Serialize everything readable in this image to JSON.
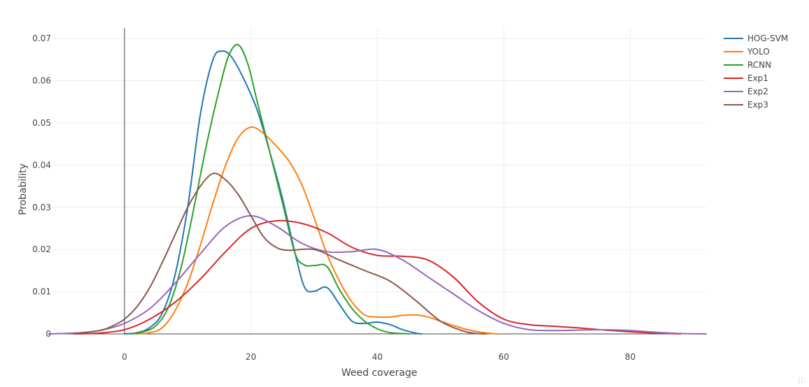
{
  "chart_data": {
    "type": "line",
    "title": "",
    "xlabel": "Weed coverage",
    "ylabel": "Probability",
    "xlim": [
      -11.5,
      92
    ],
    "ylim": [
      0,
      0.0725
    ],
    "xticks": [
      0,
      20,
      40,
      60,
      80
    ],
    "yticks": [
      0,
      0.01,
      0.02,
      0.03,
      0.04,
      0.05,
      0.06,
      0.07
    ],
    "ytick_labels": [
      "0",
      "0.01",
      "0.02",
      "0.03",
      "0.04",
      "0.05",
      "0.06",
      "0.07"
    ],
    "grid": true,
    "legend_position": "top-right",
    "series": [
      {
        "name": "HOG-SVM",
        "color": "#1f77b4",
        "x": [
          0,
          2,
          4,
          6,
          8,
          10,
          12,
          14,
          15.5,
          17,
          19,
          21,
          23,
          25,
          27,
          28.5,
          30,
          32,
          34,
          36,
          38,
          40,
          42,
          44,
          46,
          47
        ],
        "y": [
          0,
          0.0003,
          0.0015,
          0.005,
          0.014,
          0.03,
          0.052,
          0.065,
          0.067,
          0.0655,
          0.06,
          0.053,
          0.043,
          0.032,
          0.019,
          0.011,
          0.0101,
          0.011,
          0.007,
          0.003,
          0.0025,
          0.0028,
          0.0022,
          0.001,
          0.0002,
          0
        ]
      },
      {
        "name": "YOLO",
        "color": "#ff7f0e",
        "x": [
          2,
          4,
          6,
          8,
          10,
          12,
          14,
          16,
          18,
          20,
          22,
          24,
          26,
          28,
          30,
          32,
          34,
          36,
          38,
          40,
          42,
          44,
          46,
          48,
          50,
          52,
          54,
          56,
          58,
          59
        ],
        "y": [
          0,
          0.0003,
          0.0015,
          0.0055,
          0.012,
          0.021,
          0.031,
          0.04,
          0.0465,
          0.049,
          0.0475,
          0.0445,
          0.041,
          0.0355,
          0.0275,
          0.019,
          0.0125,
          0.0075,
          0.0045,
          0.004,
          0.004,
          0.0044,
          0.0045,
          0.004,
          0.003,
          0.002,
          0.0011,
          0.0005,
          0.0001,
          0
        ]
      },
      {
        "name": "RCNN",
        "color": "#2ca02c",
        "x": [
          1,
          3,
          5,
          7,
          9,
          11,
          13,
          15,
          16.5,
          18,
          19.5,
          21,
          23,
          25,
          27,
          28.5,
          30,
          32,
          34,
          36,
          38,
          40,
          42,
          44,
          45
        ],
        "y": [
          0,
          0.0005,
          0.002,
          0.0065,
          0.016,
          0.03,
          0.045,
          0.058,
          0.066,
          0.0685,
          0.064,
          0.055,
          0.043,
          0.031,
          0.019,
          0.0163,
          0.0162,
          0.016,
          0.0105,
          0.006,
          0.003,
          0.0012,
          0.0003,
          0.0001,
          0
        ]
      },
      {
        "name": "Exp1",
        "color": "#d62728",
        "x": [
          -8,
          -4,
          0,
          4,
          8,
          12,
          16,
          20,
          24,
          28,
          32,
          36,
          40,
          44,
          48,
          52,
          56,
          60,
          64,
          68,
          72,
          76,
          80,
          84,
          88
        ],
        "y": [
          0,
          0.0002,
          0.001,
          0.0035,
          0.0075,
          0.013,
          0.0195,
          0.025,
          0.0268,
          0.0262,
          0.024,
          0.0205,
          0.0186,
          0.0184,
          0.0175,
          0.0135,
          0.0075,
          0.0035,
          0.0022,
          0.0018,
          0.0014,
          0.0009,
          0.0005,
          0.0002,
          0
        ]
      },
      {
        "name": "Exp2",
        "color": "#9467bd",
        "x": [
          -12,
          -8,
          -4,
          0,
          4,
          8,
          12,
          16,
          20,
          24,
          28,
          32,
          36,
          40,
          44,
          48,
          52,
          56,
          60,
          64,
          68,
          72,
          76,
          80,
          84,
          88,
          92
        ],
        "y": [
          0,
          0.0002,
          0.0008,
          0.0025,
          0.006,
          0.012,
          0.019,
          0.0255,
          0.028,
          0.0255,
          0.0215,
          0.0195,
          0.0195,
          0.02,
          0.0175,
          0.0135,
          0.0095,
          0.0055,
          0.0025,
          0.001,
          0.0008,
          0.0009,
          0.001,
          0.0008,
          0.0004,
          0.0001,
          0
        ]
      },
      {
        "name": "Exp3",
        "color": "#8c564b",
        "x": [
          -8,
          -4,
          -2,
          0,
          2,
          4,
          6,
          8,
          10,
          12,
          14,
          16,
          18,
          20,
          22,
          24,
          26,
          30,
          34,
          38,
          42,
          46,
          50,
          54,
          57
        ],
        "y": [
          0,
          0.0008,
          0.0018,
          0.0035,
          0.0065,
          0.011,
          0.017,
          0.0235,
          0.03,
          0.035,
          0.038,
          0.0365,
          0.033,
          0.028,
          0.023,
          0.0205,
          0.0198,
          0.02,
          0.0175,
          0.015,
          0.0125,
          0.008,
          0.003,
          0.0005,
          0
        ]
      }
    ]
  }
}
